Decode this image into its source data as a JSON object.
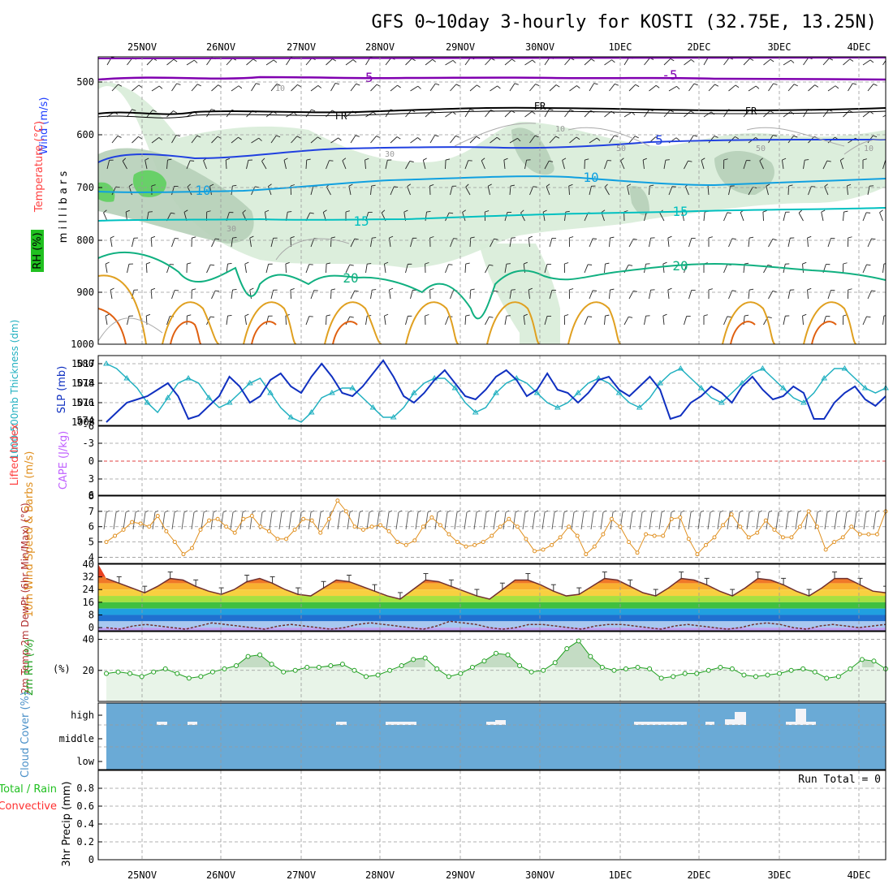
{
  "title": "GFS 0~10day 3-hourly for KOSTI (32.75E, 13.25N)",
  "days": [
    "25NOV",
    "26NOV",
    "27NOV",
    "28NOV",
    "29NOV",
    "30NOV",
    "1DEC",
    "2DEC",
    "3DEC",
    "4DEC"
  ],
  "colors": {
    "temp": "#ff4040",
    "wind": "#2040ff",
    "rh": "#20c020",
    "cape": "#c060ff",
    "thick": "#20b0c0",
    "slp": "#1030c0",
    "wind10": "#e09020",
    "cloud": "#6aaad6",
    "purple": "#8000b0",
    "teal": "#00b0c0",
    "green_c": "#10b080",
    "orange": "#e08000"
  },
  "chart_data": [
    {
      "type": "heatmap",
      "name_panel": "upper-air",
      "ylabel_wind": "Wind (m/s)",
      "ylabel_temp": "Temperature (°C)",
      "ylabel_rh": "RH (%)",
      "ylabel_p": "m i l l i b a r s",
      "yticks": [
        "500",
        "600",
        "700",
        "800",
        "900",
        "1000"
      ],
      "contour_labels": [
        "-5",
        "-5",
        "FR",
        "FR",
        "FR",
        "5",
        "5",
        "10",
        "10",
        "15",
        "15",
        "20",
        "20",
        "10",
        "10",
        "10",
        "30",
        "30",
        "50",
        "50"
      ],
      "ylim": [
        1000,
        450
      ]
    },
    {
      "type": "line",
      "name_panel": "thickness-slp",
      "ylabel_left": "1000-500mb Thickness (dm)",
      "ylabel_right": "SLP (mb)",
      "yticks_left": [
        "580",
        "578",
        "576",
        "574"
      ],
      "yticks_right": [
        "1017",
        "1014",
        "1011",
        "1008"
      ],
      "series": [
        {
          "name": "Thickness",
          "values": [
            580,
            579.5,
            578.5,
            577.5,
            576,
            575,
            576.5,
            578,
            578.5,
            578,
            576.5,
            575.5,
            576,
            577,
            578,
            578.5,
            577,
            575.5,
            574.5,
            574,
            575,
            576.5,
            577,
            577.5,
            577.5,
            576.5,
            575.5,
            574.5,
            574.5,
            575.5,
            577,
            578,
            578.5,
            578.5,
            577.5,
            576,
            575,
            575.5,
            577,
            578,
            578.5,
            578,
            577,
            576,
            575.5,
            576,
            577,
            578,
            578.5,
            578,
            577,
            576,
            575.5,
            576.5,
            578,
            579,
            579.5,
            578.5,
            577.5,
            576.5,
            576,
            577,
            578,
            579,
            579.5,
            578.5,
            577.5,
            576.5,
            576,
            577,
            578.5,
            579.5,
            579.5,
            578.5,
            577.5,
            577,
            577.5
          ]
        },
        {
          "name": "SLP",
          "values": [
            1008,
            1009.5,
            1011,
            1011.5,
            1012,
            1013,
            1014,
            1012,
            1008.5,
            1009,
            1010.5,
            1012,
            1015,
            1013.5,
            1011,
            1012,
            1014.5,
            1015.5,
            1013.5,
            1012.5,
            1015,
            1017,
            1015,
            1012.5,
            1012,
            1013.5,
            1015.5,
            1017.5,
            1015,
            1012,
            1011,
            1012.5,
            1014.5,
            1016,
            1014,
            1012,
            1011.5,
            1013,
            1015,
            1016,
            1014.5,
            1012,
            1013,
            1015.5,
            1013,
            1012.5,
            1011,
            1012.5,
            1014.5,
            1015,
            1013,
            1012,
            1013.5,
            1015,
            1013,
            1008.5,
            1009,
            1011,
            1012,
            1013.5,
            1012.5,
            1011,
            1013.5,
            1015,
            1013,
            1011.5,
            1012,
            1013.5,
            1012.5,
            1008.5,
            1008.5,
            1011,
            1012.5,
            1013.5,
            1011.5,
            1010.5,
            1012
          ]
        }
      ]
    },
    {
      "type": "line",
      "name_panel": "lifted-cape",
      "ylabel_left": "Lifted Index",
      "ylabel_right": "CAPE (J/kg)",
      "yticks": [
        "-6",
        "-3",
        "0",
        "3",
        "6"
      ],
      "ylim": [
        -6,
        6
      ]
    },
    {
      "type": "line",
      "name_panel": "wind10m",
      "ylabel": "10m Wind Speed & Barbs (m/s)",
      "yticks": [
        "8",
        "7",
        "6",
        "5",
        "4"
      ],
      "ylim": [
        3.6,
        8
      ],
      "series": [
        {
          "name": "Speed",
          "values": [
            5,
            5.4,
            5.8,
            6.3,
            6.2,
            6,
            6.7,
            5.7,
            5,
            4.2,
            4.6,
            5.8,
            6.4,
            6.5,
            6,
            5.6,
            6.5,
            6.7,
            6,
            5.7,
            5.2,
            5.2,
            5.8,
            6.5,
            6.4,
            5.6,
            6.5,
            7.7,
            7,
            6,
            5.8,
            6,
            6.1,
            5.7,
            5,
            4.8,
            5.1,
            6,
            6.6,
            6.1,
            5.5,
            5,
            4.7,
            4.8,
            5,
            5.4,
            6,
            6.5,
            6,
            5.2,
            4.4,
            4.5,
            4.8,
            5.3,
            6,
            5.4,
            4.2,
            4.7,
            5.5,
            6.5,
            6,
            5,
            4.3,
            5.5,
            5.4,
            5.4,
            6.5,
            6.6,
            5.2,
            4.2,
            4.8,
            5.3,
            6.1,
            6.8,
            6,
            5.3,
            5.6,
            6.4,
            5.8,
            5.3,
            5.3,
            6,
            7,
            6,
            4.5,
            5,
            5.3,
            6,
            5.5,
            5.5,
            5.5,
            7
          ]
        }
      ]
    },
    {
      "type": "area",
      "name_panel": "temp2m",
      "ylabel": "2m Temp 2m DewPt (6hr Min/Max) (°C)",
      "yticks": [
        "40",
        "32",
        "24",
        "16",
        "8",
        "0"
      ],
      "ylim": [
        -2,
        40
      ],
      "series": [
        {
          "name": "Temp",
          "values": [
            31,
            28,
            25,
            22,
            26,
            31,
            30,
            26,
            23,
            21,
            24,
            29,
            31,
            28,
            24,
            21,
            20,
            25,
            30,
            29,
            26,
            23,
            20,
            18,
            24,
            30,
            29,
            26,
            23,
            20,
            18,
            24,
            30,
            30,
            27,
            23,
            20,
            21,
            26,
            31,
            30,
            26,
            22,
            20,
            25,
            31,
            30,
            27,
            23,
            20,
            25,
            31,
            30,
            27,
            23,
            20,
            25,
            31,
            31,
            27,
            23,
            22
          ]
        },
        {
          "name": "DewPt",
          "values": [
            0,
            -1,
            1,
            2,
            1,
            0,
            -1,
            1,
            3,
            2,
            1,
            0,
            -1,
            1,
            2,
            1,
            0,
            -1,
            0,
            2,
            3,
            2,
            1,
            0,
            -1,
            1,
            4,
            3,
            2,
            0,
            -1,
            0,
            2,
            2,
            1,
            0,
            -1,
            1,
            2,
            2,
            1,
            0,
            -1,
            1,
            2,
            1,
            0,
            -1,
            0,
            2,
            3,
            2,
            0,
            -1,
            1,
            2,
            1,
            0,
            1,
            2
          ]
        }
      ]
    },
    {
      "type": "area",
      "name_panel": "rh2m",
      "ylabel": "2m RH (%)",
      "yticks": [
        "40",
        "20"
      ],
      "ylim": [
        0,
        45
      ],
      "series": [
        {
          "name": "RH",
          "values": [
            18,
            19,
            18,
            16,
            19,
            21,
            18,
            15,
            16,
            19,
            21,
            23,
            29,
            30,
            24,
            19,
            20,
            22,
            22,
            23,
            24,
            20,
            16,
            17,
            20,
            23,
            27,
            28,
            21,
            16,
            18,
            22,
            26,
            31,
            30,
            23,
            19,
            20,
            25,
            34,
            39,
            29,
            22,
            20,
            21,
            22,
            21,
            15,
            16,
            18,
            18,
            20,
            22,
            21,
            17,
            16,
            17,
            18,
            20,
            21,
            19,
            15,
            16,
            21,
            27,
            26,
            21
          ]
        }
      ]
    },
    {
      "type": "bar",
      "name_panel": "cloud",
      "ylabel": "Cloud Cover (%)",
      "yticks": [
        "high",
        "middle",
        "low"
      ]
    },
    {
      "type": "bar",
      "name_panel": "precip",
      "ylabel_left1": "Total / Rain",
      "ylabel_left2": "Convective",
      "ylabel": "3hr Precip (mm)",
      "yticks": [
        "0.8",
        "0.6",
        "0.4",
        "0.2",
        "0"
      ],
      "ylim": [
        0,
        1
      ],
      "annotation": "Run Total = 0"
    }
  ]
}
